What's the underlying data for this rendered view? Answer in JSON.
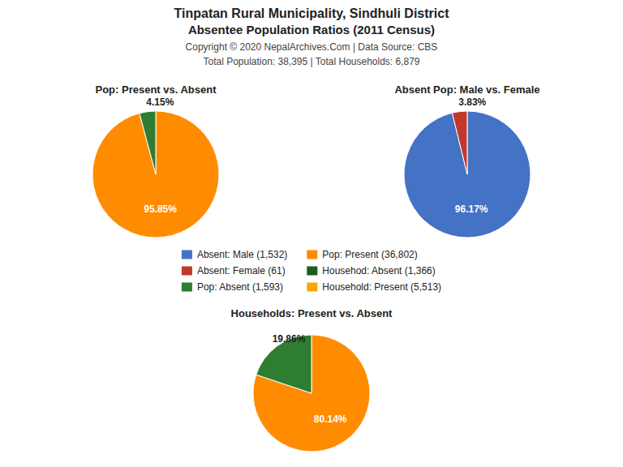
{
  "title": "Tinpatan Rural Municipality, Sindhuli District",
  "subtitle": "Absentee Population Ratios (2011 Census)",
  "annotations": [
    "Copyright © 2020 NepalArchives.Com | Data Source: CBS",
    "Total Population: 38,395 | Total Households: 6,879"
  ],
  "legend": "center",
  "series": [
    {
      "name": "Absent: Male (1,532)",
      "color": "#4472C4"
    },
    {
      "name": "Absent: Female (61)",
      "color": "#C0392B"
    },
    {
      "name": "Pop: Absent (1,593)",
      "color": "#2E7D32"
    },
    {
      "name": "Pop: Present (36,802)",
      "color": "#FF8C00"
    },
    {
      "name": "Househod: Absent (1,366)",
      "color": "#1B5E20"
    },
    {
      "name": "Household: Present (5,513)",
      "color": "#FFA500"
    }
  ],
  "chart_data": [
    {
      "type": "pie",
      "title": "Pop: Present vs. Absent",
      "values": [
        95.85,
        4.15
      ],
      "value_labels": [
        "95.85%",
        "4.15%"
      ],
      "colors": [
        "#FF8C00",
        "#2E7D32"
      ],
      "data_labels": true
    },
    {
      "type": "pie",
      "title": "Absent Pop: Male vs. Female",
      "values": [
        96.17,
        3.83
      ],
      "value_labels": [
        "96.17%",
        "3.83%"
      ],
      "colors": [
        "#4472C4",
        "#C0392B"
      ],
      "data_labels": true
    },
    {
      "type": "pie",
      "title": "Households: Present vs. Absent",
      "values": [
        80.14,
        19.86
      ],
      "value_labels": [
        "80.14%",
        "19.86%"
      ],
      "colors": [
        "#FF8C00",
        "#2E7D32"
      ],
      "data_labels": true
    }
  ]
}
